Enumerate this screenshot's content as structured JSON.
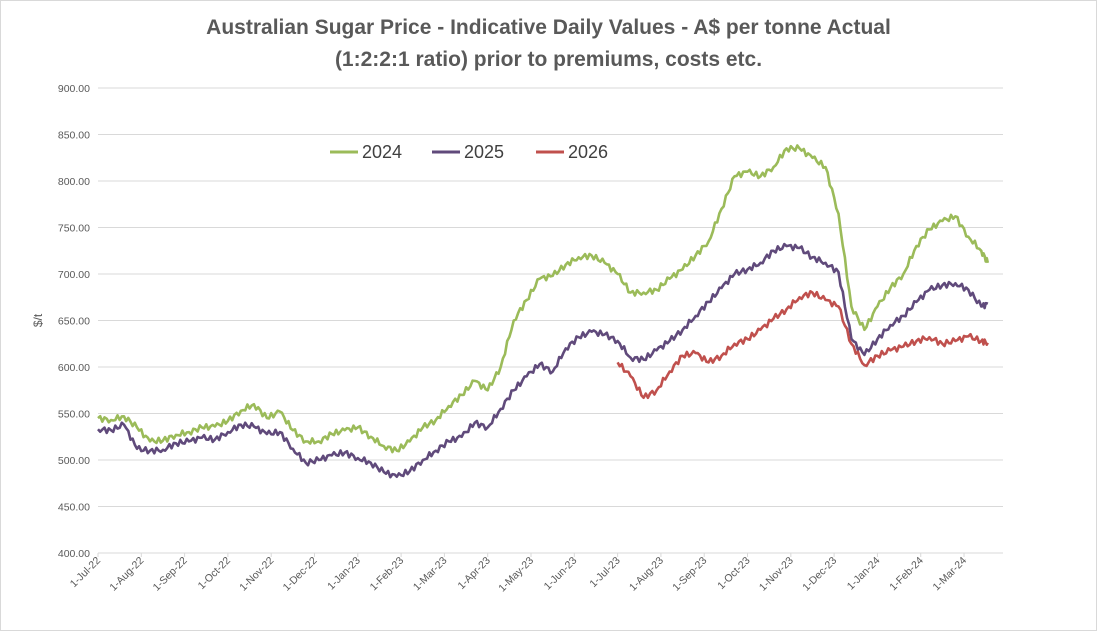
{
  "chart_data": {
    "type": "line",
    "title_line1": "Australian Sugar Price - Indicative Daily Values - A$ per tonne Actual",
    "title_line2": "(1:2:2:1 ratio) prior to premiums, costs etc.",
    "xlabel": "",
    "ylabel": "$/t",
    "ylim": [
      400,
      900
    ],
    "y_ticks": [
      "400.00",
      "450.00",
      "500.00",
      "550.00",
      "600.00",
      "650.00",
      "700.00",
      "750.00",
      "800.00",
      "850.00",
      "900.00"
    ],
    "x_ticks": [
      "1-Jul-22",
      "1-Aug-22",
      "1-Sep-22",
      "1-Oct-22",
      "1-Nov-22",
      "1-Dec-22",
      "1-Jan-23",
      "1-Feb-23",
      "1-Mar-23",
      "1-Apr-23",
      "1-May-23",
      "1-Jun-23",
      "1-Jul-23",
      "1-Aug-23",
      "1-Sep-23",
      "1-Oct-23",
      "1-Nov-23",
      "1-Dec-23",
      "1-Jan-24",
      "1-Feb-24",
      "1-Mar-24"
    ],
    "x_unit": "months since 1-Jul-22",
    "grid": true,
    "legend_position": "top-center",
    "series": [
      {
        "name": "2024",
        "color": "#9bbb59",
        "x": [
          0,
          0.3,
          0.6,
          0.9,
          1.2,
          1.5,
          1.8,
          2.1,
          2.4,
          2.7,
          3.0,
          3.3,
          3.6,
          3.9,
          4.2,
          4.5,
          4.8,
          5.1,
          5.4,
          5.7,
          6.0,
          6.3,
          6.6,
          6.9,
          7.2,
          7.5,
          7.8,
          8.1,
          8.4,
          8.7,
          9.0,
          9.3,
          9.6,
          9.9,
          10.2,
          10.5,
          10.8,
          11.1,
          11.4,
          11.7,
          12.0,
          12.3,
          12.6,
          12.9,
          13.2,
          13.5,
          13.8,
          14.1,
          14.4,
          14.7,
          15.0,
          15.3,
          15.6,
          15.9,
          16.2,
          16.5,
          16.8,
          17.1,
          17.4,
          17.7,
          18.0,
          18.3,
          18.6,
          18.9,
          19.2,
          19.5,
          19.8,
          20.1,
          20.4,
          20.55
        ],
        "values": [
          545,
          543,
          547,
          535,
          520,
          521,
          527,
          530,
          535,
          536,
          542,
          553,
          560,
          545,
          552,
          532,
          520,
          520,
          528,
          532,
          535,
          525,
          515,
          510,
          520,
          535,
          543,
          558,
          570,
          585,
          575,
          600,
          650,
          672,
          695,
          698,
          710,
          718,
          720,
          712,
          700,
          680,
          680,
          683,
          695,
          705,
          720,
          735,
          770,
          805,
          810,
          805,
          815,
          835,
          835,
          825,
          815,
          765,
          665,
          640,
          665,
          685,
          700,
          730,
          748,
          757,
          762,
          740,
          725,
          712
        ]
      },
      {
        "name": "2025",
        "color": "#604a7b",
        "x": [
          0,
          0.3,
          0.6,
          0.9,
          1.2,
          1.5,
          1.8,
          2.1,
          2.4,
          2.7,
          3.0,
          3.3,
          3.6,
          3.9,
          4.2,
          4.5,
          4.8,
          5.1,
          5.4,
          5.7,
          6.0,
          6.3,
          6.6,
          6.9,
          7.2,
          7.5,
          7.8,
          8.1,
          8.4,
          8.7,
          9.0,
          9.3,
          9.6,
          9.9,
          10.2,
          10.5,
          10.8,
          11.1,
          11.4,
          11.7,
          12.0,
          12.3,
          12.6,
          12.9,
          13.2,
          13.5,
          13.8,
          14.1,
          14.4,
          14.7,
          15.0,
          15.3,
          15.6,
          15.9,
          16.2,
          16.5,
          16.8,
          17.1,
          17.4,
          17.7,
          18.0,
          18.3,
          18.6,
          18.9,
          19.2,
          19.5,
          19.8,
          20.1,
          20.4,
          20.55
        ],
        "values": [
          533,
          532,
          538,
          512,
          510,
          511,
          518,
          520,
          524,
          522,
          530,
          538,
          536,
          528,
          530,
          512,
          497,
          500,
          505,
          508,
          502,
          497,
          487,
          482,
          488,
          500,
          510,
          520,
          525,
          540,
          535,
          555,
          575,
          590,
          603,
          595,
          620,
          632,
          638,
          635,
          628,
          610,
          608,
          618,
          628,
          640,
          655,
          670,
          685,
          700,
          705,
          712,
          725,
          730,
          728,
          718,
          712,
          702,
          630,
          613,
          630,
          645,
          655,
          670,
          683,
          688,
          690,
          683,
          665,
          668
        ]
      },
      {
        "name": "2026",
        "color": "#c0504d",
        "x": [
          12.0,
          12.3,
          12.6,
          12.9,
          13.2,
          13.5,
          13.8,
          14.1,
          14.4,
          14.7,
          15.0,
          15.3,
          15.6,
          15.9,
          16.2,
          16.5,
          16.8,
          17.1,
          17.4,
          17.7,
          18.0,
          18.3,
          18.6,
          18.9,
          19.2,
          19.5,
          19.8,
          20.1,
          20.4,
          20.55
        ],
        "values": [
          605,
          590,
          567,
          575,
          595,
          612,
          615,
          605,
          612,
          625,
          630,
          640,
          652,
          662,
          675,
          680,
          672,
          665,
          625,
          602,
          612,
          618,
          622,
          628,
          632,
          625,
          628,
          633,
          628,
          626
        ]
      }
    ]
  }
}
